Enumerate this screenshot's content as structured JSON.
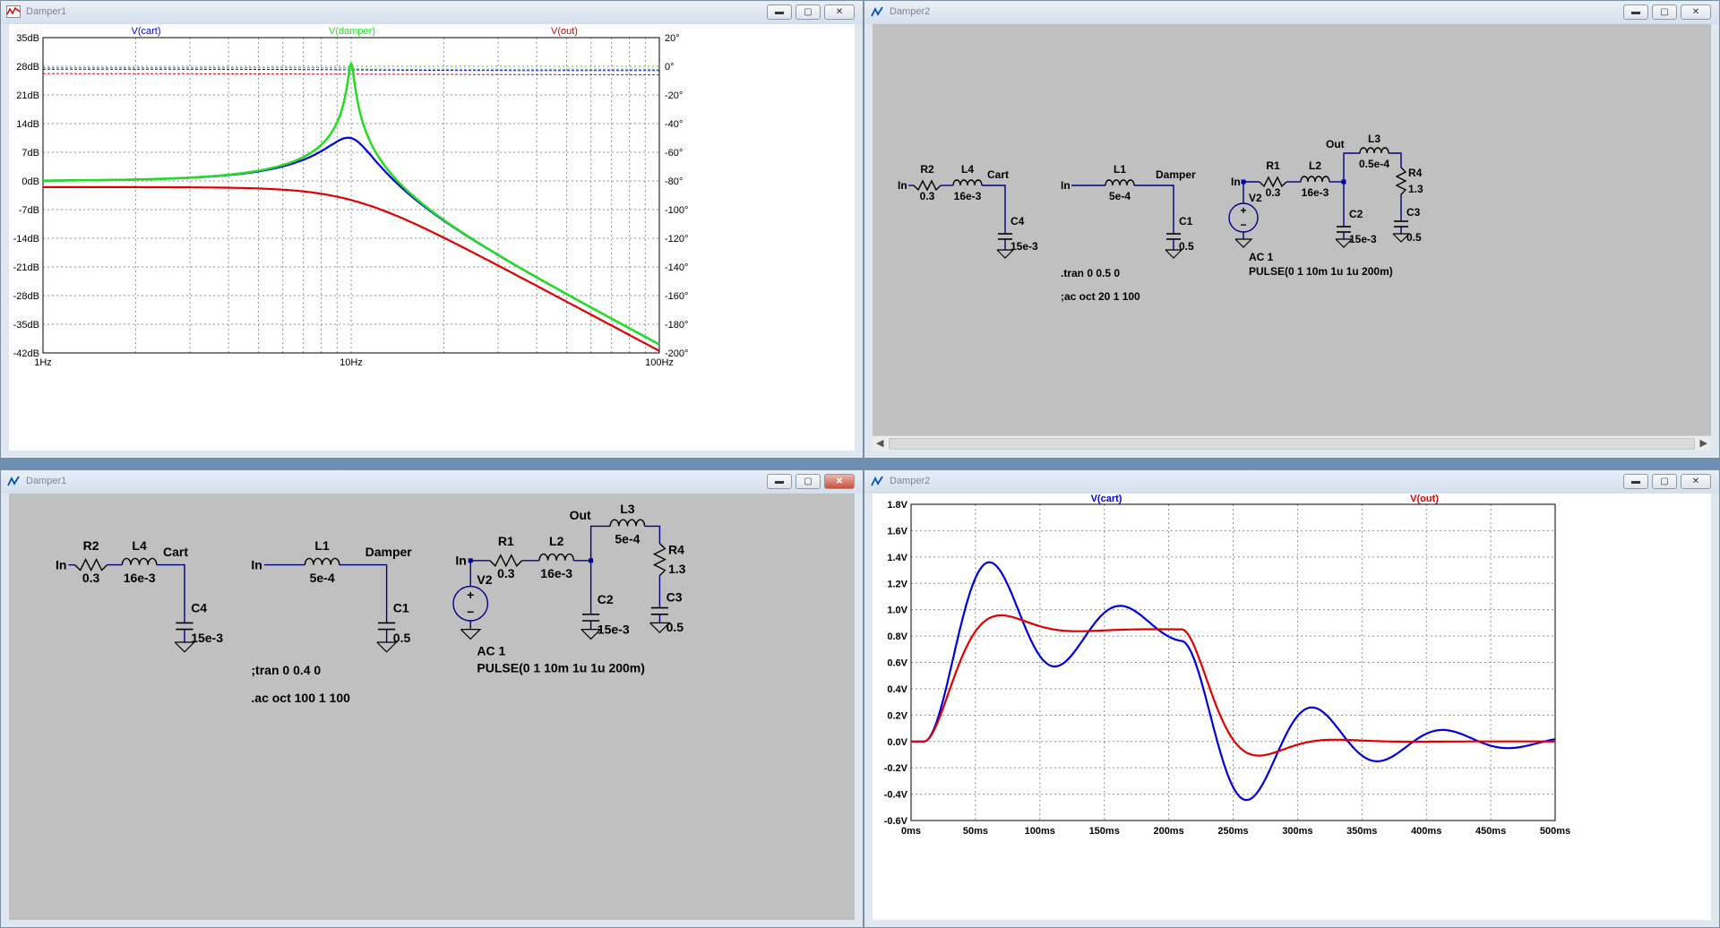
{
  "windows": {
    "bode": {
      "title": "Damper1"
    },
    "schem_top": {
      "title": "Damper2"
    },
    "schem_bottom": {
      "title": "Damper1"
    },
    "transient": {
      "title": "Damper2"
    }
  },
  "controls": {
    "minimize": "▬",
    "maximize": "▢",
    "close": "✕"
  },
  "bode_plot": {
    "traces": [
      "V(cart)",
      "V(damper)",
      "V(out)"
    ],
    "left_ticks": [
      "35dB",
      "28dB",
      "21dB",
      "14dB",
      "7dB",
      "0dB",
      "-7dB",
      "-14dB",
      "-21dB",
      "-28dB",
      "-35dB",
      "-42dB"
    ],
    "right_ticks": [
      "20°",
      "0°",
      "-20°",
      "-40°",
      "-60°",
      "-80°",
      "-100°",
      "-120°",
      "-140°",
      "-160°",
      "-180°",
      "-200°"
    ],
    "x_ticks": [
      "1Hz",
      "10Hz",
      "100Hz"
    ]
  },
  "transient_plot": {
    "traces": [
      "V(cart)",
      "V(out)"
    ],
    "y_ticks": [
      "1.8V",
      "1.6V",
      "1.4V",
      "1.2V",
      "1.0V",
      "0.8V",
      "0.6V",
      "0.4V",
      "0.2V",
      "0.0V",
      "-0.2V",
      "-0.4V",
      "-0.6V"
    ],
    "x_ticks": [
      "0ms",
      "50ms",
      "100ms",
      "150ms",
      "200ms",
      "250ms",
      "300ms",
      "350ms",
      "400ms",
      "450ms",
      "500ms"
    ]
  },
  "schem_top": {
    "r2": "R2",
    "r2v": "0.3",
    "l4": "L4",
    "l4v": "16e-3",
    "in1": "In",
    "cart": "Cart",
    "c4": "C4",
    "c4v": "15e-3",
    "in2": "In",
    "l1": "L1",
    "l1v": "5e-4",
    "damper": "Damper",
    "c1": "C1",
    "c1v": "0.5",
    "in3": "In",
    "r1": "R1",
    "r1v": "0.3",
    "v2": "V2",
    "l2": "L2",
    "l2v": "16e-3",
    "out": "Out",
    "l3": "L3",
    "l3v": "0.5e-4",
    "r4": "R4",
    "r4v": "1.3",
    "c2": "C2",
    "c2v": "15e-3",
    "c3": "C3",
    "c3v": "0.5",
    "dir1": ".tran 0 0.5 0",
    "dir2": ";ac oct 20 1 100",
    "src1": "AC 1",
    "src2": "PULSE(0 1 10m 1u 1u 200m)"
  },
  "schem_bottom": {
    "r2": "R2",
    "r2v": "0.3",
    "l4": "L4",
    "l4v": "16e-3",
    "in1": "In",
    "cart": "Cart",
    "c4": "C4",
    "c4v": "15e-3",
    "in2": "In",
    "l1": "L1",
    "l1v": "5e-4",
    "damper": "Damper",
    "c1": "C1",
    "c1v": "0.5",
    "in3": "In",
    "r1": "R1",
    "r1v": "0.3",
    "v2": "V2",
    "l2": "L2",
    "l2v": "16e-3",
    "out": "Out",
    "l3": "L3",
    "l3v": "5e-4",
    "r4": "R4",
    "r4v": "1.3",
    "c2": "C2",
    "c2v": "15e-3",
    "c3": "C3",
    "c3v": "0.5",
    "dir1": ";tran 0 0.4 0",
    "dir2": ".ac oct 100 1 100",
    "src1": "AC 1",
    "src2": "PULSE(0 1 10m 1u 1u 200m)"
  },
  "colors": {
    "blue": "#0000e0",
    "green": "#22dd22",
    "red": "#e00000",
    "wire": "#000080"
  }
}
